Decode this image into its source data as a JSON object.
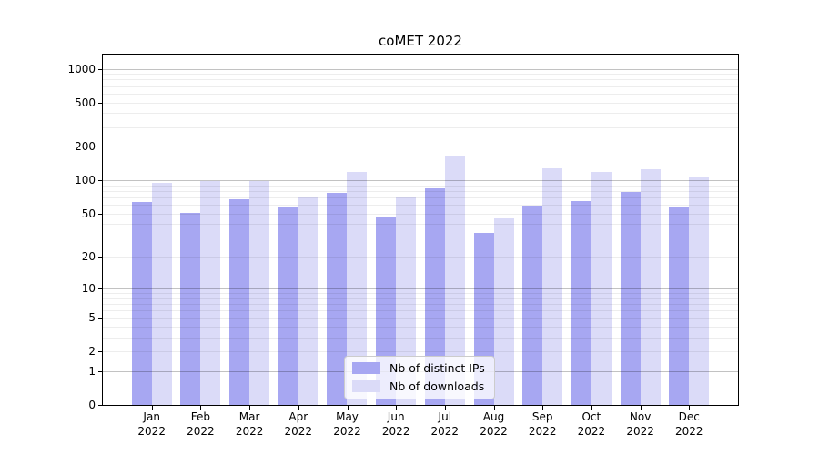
{
  "title": "coMET 2022",
  "legend": {
    "items": [
      {
        "label": "Nb of distinct IPs",
        "color": "#a7a7f2"
      },
      {
        "label": "Nb of downloads",
        "color": "#dbdbf8"
      }
    ]
  },
  "axis": {
    "y_tick_labels": [
      "0",
      "1",
      "2",
      "5",
      "10",
      "20",
      "50",
      "100",
      "200",
      "500",
      "1000"
    ],
    "x_year": "2022",
    "x_months": [
      "Jan",
      "Feb",
      "Mar",
      "Apr",
      "May",
      "Jun",
      "Jul",
      "Aug",
      "Sep",
      "Oct",
      "Nov",
      "Dec"
    ]
  },
  "chart_data": {
    "type": "bar",
    "title": "coMET 2022",
    "categories": [
      "Jan 2022",
      "Feb 2022",
      "Mar 2022",
      "Apr 2022",
      "May 2022",
      "Jun 2022",
      "Jul 2022",
      "Aug 2022",
      "Sep 2022",
      "Oct 2022",
      "Nov 2022",
      "Dec 2022"
    ],
    "series": [
      {
        "name": "Nb of distinct IPs",
        "color": "#a7a7f2",
        "values": [
          64,
          51,
          67,
          58,
          77,
          47,
          84,
          33,
          59,
          65,
          78,
          58
        ]
      },
      {
        "name": "Nb of downloads",
        "color": "#dbdbf8",
        "values": [
          94,
          98,
          98,
          72,
          120,
          71,
          167,
          45,
          128,
          119,
          127,
          107
        ]
      }
    ],
    "xlabel": "",
    "ylabel": "",
    "y_scale": "log10(value+1)",
    "y_ticks": [
      0,
      1,
      2,
      5,
      10,
      20,
      50,
      100,
      200,
      500,
      1000
    ],
    "ylim": [
      0,
      1325
    ],
    "grid": "horizontal; major lines at decades 1,10,100,1000; faint minor lines at 2-9 multiples",
    "legend_position": "lower center, inside plot"
  }
}
